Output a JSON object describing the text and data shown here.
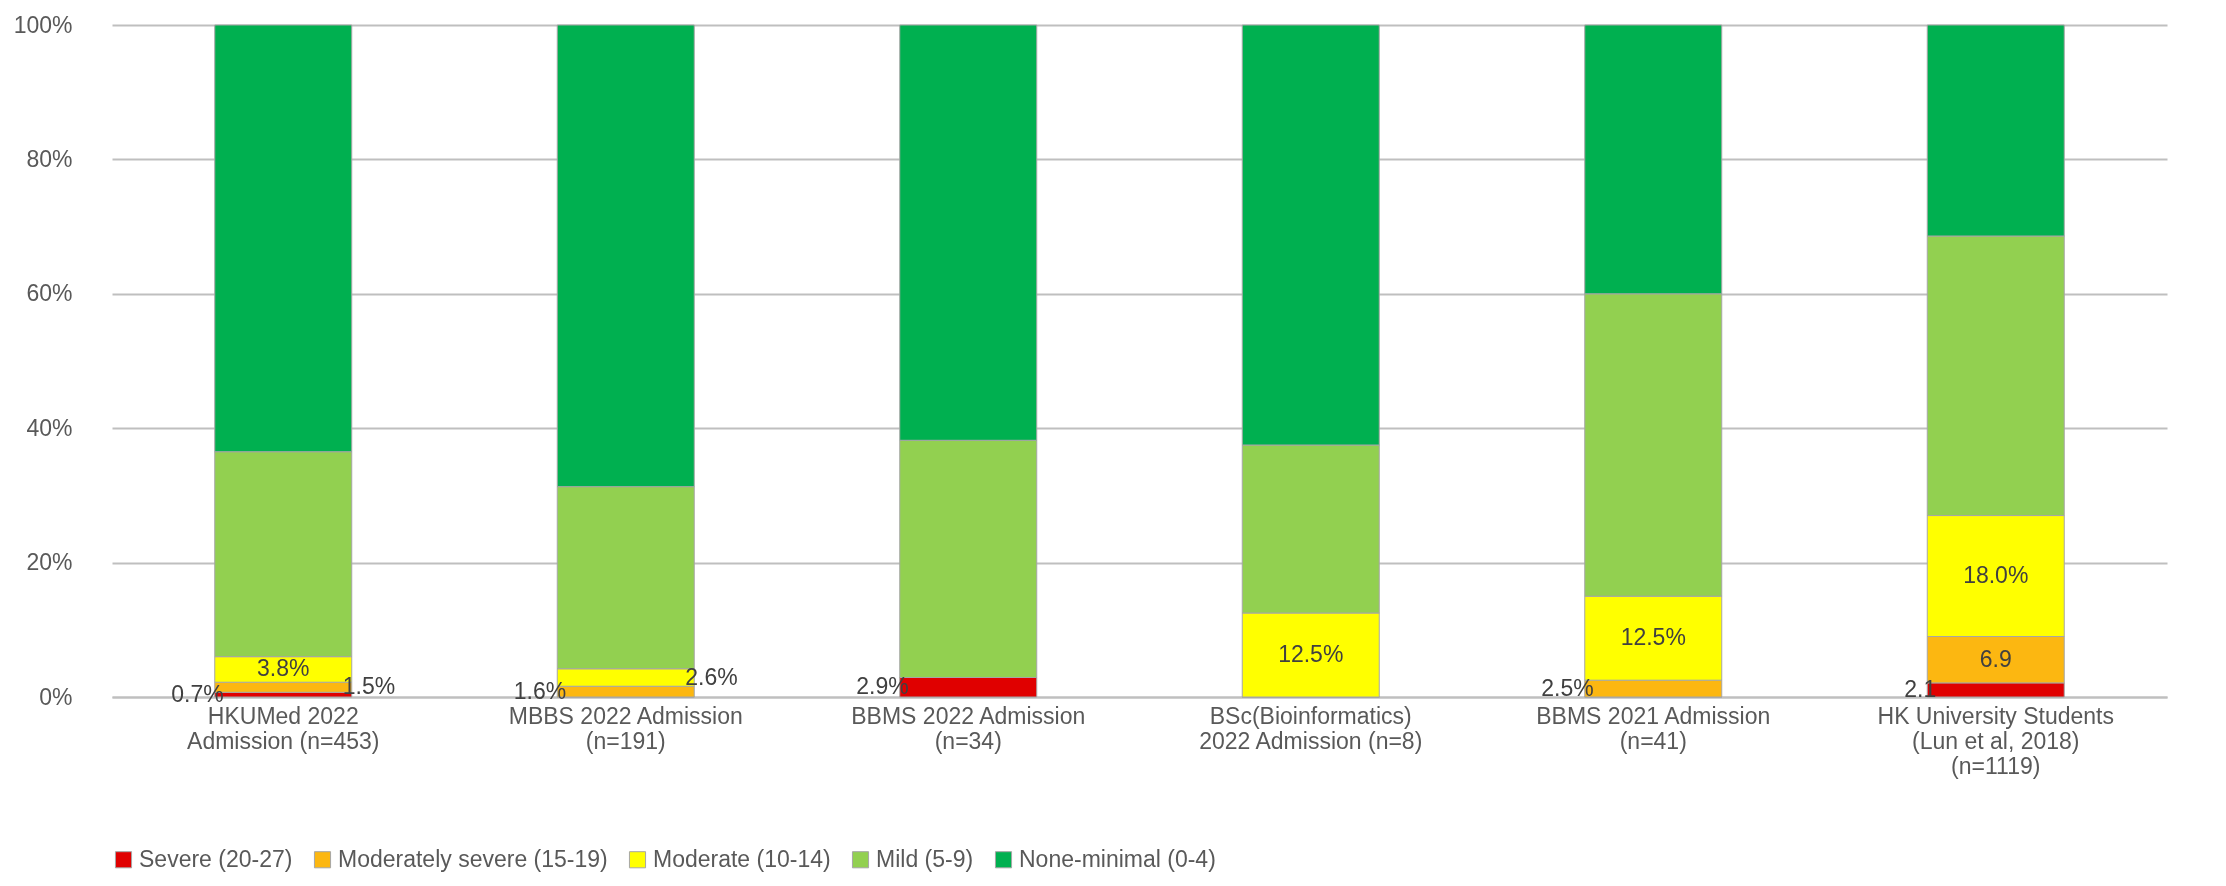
{
  "chart_data": {
    "type": "bar",
    "stacked": true,
    "categories": [
      "HKUMed 2022\nAdmission (n=453)",
      "MBBS 2022 Admission\n(n=191)",
      "BBMS 2022 Admission\n(n=34)",
      "BSc(Bioinformatics)\n2022 Admission (n=8)",
      "BBMS 2021 Admission\n(n=41)",
      "HK University Students\n(Lun et al, 2018)\n(n=1119)"
    ],
    "series": [
      {
        "name": "Severe (20-27)",
        "color": "#e00000",
        "values": [
          0.7,
          0,
          2.9,
          0,
          0,
          2.1
        ],
        "value_labels": [
          "0.7%",
          null,
          "2.9%",
          null,
          null,
          "2.1"
        ]
      },
      {
        "name": "Moderately severe (15-19)",
        "color": "#fcb711",
        "values": [
          1.5,
          1.6,
          0,
          0,
          2.5,
          6.9
        ],
        "value_labels": [
          "1.5%",
          "1.6%",
          null,
          null,
          "2.5%",
          "6.9"
        ]
      },
      {
        "name": "Moderate (10-14)",
        "color": "#ffff00",
        "values": [
          3.8,
          2.6,
          0,
          12.5,
          12.5,
          18.0
        ],
        "value_labels": [
          "3.8%",
          "2.6%",
          null,
          "12.5%",
          "12.5%",
          "18.0%"
        ]
      },
      {
        "name": "Mild (5-9)",
        "color": "#92d050",
        "values": [
          30.5,
          27.1,
          35.3,
          25.0,
          45.0,
          41.6
        ],
        "value_labels": [
          null,
          null,
          null,
          null,
          null,
          null
        ]
      },
      {
        "name": "None-minimal (0-4)",
        "color": "#00b050",
        "values": [
          63.5,
          68.7,
          61.8,
          62.5,
          40.0,
          31.4
        ],
        "value_labels": [
          null,
          null,
          null,
          null,
          null,
          null
        ]
      }
    ],
    "ylim": [
      0,
      100
    ],
    "yticks": [
      {
        "value": 0,
        "label": "0%"
      },
      {
        "value": 20,
        "label": "20%"
      },
      {
        "value": 40,
        "label": "40%"
      },
      {
        "value": 60,
        "label": "60%"
      },
      {
        "value": 80,
        "label": "80%"
      },
      {
        "value": 100,
        "label": "100%"
      }
    ],
    "grid": "y",
    "legend": "bottom"
  }
}
